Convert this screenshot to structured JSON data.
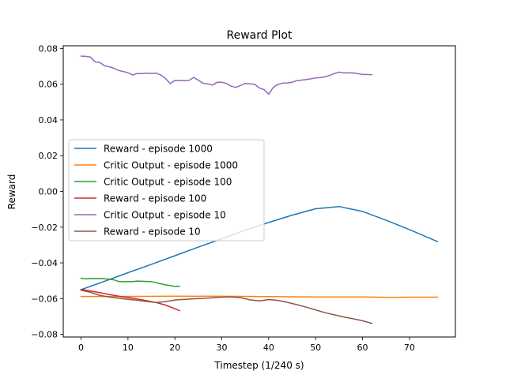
{
  "chart_data": {
    "type": "line",
    "title": "Reward Plot",
    "xlabel": "Timestep (1/240 s)",
    "ylabel": "Reward",
    "xlim": [
      -3.8,
      79.8
    ],
    "ylim": [
      -0.0815,
      0.0815
    ],
    "xticks": [
      0,
      10,
      20,
      30,
      40,
      50,
      60,
      70
    ],
    "xtick_labels": [
      "0",
      "10",
      "20",
      "30",
      "40",
      "50",
      "60",
      "70"
    ],
    "yticks": [
      -0.08,
      -0.06,
      -0.04,
      -0.02,
      0.0,
      0.02,
      0.04,
      0.06,
      0.08
    ],
    "ytick_labels": [
      "−0.08",
      "−0.06",
      "−0.04",
      "−0.02",
      "0.00",
      "0.02",
      "0.04",
      "0.06",
      "0.08"
    ],
    "grid": false,
    "legend_position": "center-left",
    "series": [
      {
        "name": "Reward - episode 1000",
        "color": "#1f77b4",
        "points": [
          [
            0,
            -0.055
          ],
          [
            5,
            -0.0503
          ],
          [
            10,
            -0.0455
          ],
          [
            15,
            -0.0408
          ],
          [
            20,
            -0.036
          ],
          [
            25,
            -0.0312
          ],
          [
            30,
            -0.0265
          ],
          [
            35,
            -0.0217
          ],
          [
            40,
            -0.0174
          ],
          [
            45,
            -0.0133
          ],
          [
            50,
            -0.0097
          ],
          [
            55,
            -0.0085
          ],
          [
            60,
            -0.0112
          ],
          [
            65,
            -0.0161
          ],
          [
            70,
            -0.0214
          ],
          [
            76,
            -0.0281
          ]
        ]
      },
      {
        "name": "Critic Output - episode 1000",
        "color": "#ff7f0e",
        "points": [
          [
            0,
            -0.0588
          ],
          [
            10,
            -0.0588
          ],
          [
            20,
            -0.0586
          ],
          [
            30,
            -0.0587
          ],
          [
            40,
            -0.0589
          ],
          [
            50,
            -0.0591
          ],
          [
            60,
            -0.0591
          ],
          [
            66,
            -0.0593
          ],
          [
            70,
            -0.0592
          ],
          [
            76,
            -0.0592
          ]
        ]
      },
      {
        "name": "Critic Output - episode 100",
        "color": "#2ca02c",
        "points": [
          [
            0,
            -0.0486
          ],
          [
            1,
            -0.0489
          ],
          [
            2,
            -0.0487
          ],
          [
            3,
            -0.0488
          ],
          [
            4,
            -0.0487
          ],
          [
            5,
            -0.0489
          ],
          [
            6,
            -0.0491
          ],
          [
            7,
            -0.0495
          ],
          [
            8,
            -0.0504
          ],
          [
            9,
            -0.0506
          ],
          [
            10,
            -0.0505
          ],
          [
            11,
            -0.0505
          ],
          [
            12,
            -0.0502
          ],
          [
            13,
            -0.0503
          ],
          [
            14,
            -0.0504
          ],
          [
            15,
            -0.0505
          ],
          [
            16,
            -0.0511
          ],
          [
            17,
            -0.0517
          ],
          [
            18,
            -0.0523
          ],
          [
            19,
            -0.0527
          ],
          [
            20,
            -0.0532
          ],
          [
            21,
            -0.0531
          ]
        ]
      },
      {
        "name": "Reward - episode 100",
        "color": "#d62728",
        "points": [
          [
            0,
            -0.0549
          ],
          [
            2,
            -0.0557
          ],
          [
            4,
            -0.0567
          ],
          [
            6,
            -0.0577
          ],
          [
            8,
            -0.0586
          ],
          [
            10,
            -0.0594
          ],
          [
            12,
            -0.0602
          ],
          [
            14,
            -0.0612
          ],
          [
            16,
            -0.0622
          ],
          [
            18,
            -0.0636
          ],
          [
            20,
            -0.0657
          ],
          [
            21,
            -0.0667
          ]
        ]
      },
      {
        "name": "Critic Output - episode 10",
        "color": "#9467bd",
        "points": [
          [
            0,
            0.0757
          ],
          [
            1,
            0.0756
          ],
          [
            2,
            0.0752
          ],
          [
            3,
            0.0725
          ],
          [
            4,
            0.0722
          ],
          [
            5,
            0.0703
          ],
          [
            6,
            0.0698
          ],
          [
            7,
            0.0689
          ],
          [
            8,
            0.0677
          ],
          [
            9,
            0.0671
          ],
          [
            10,
            0.0664
          ],
          [
            11,
            0.0652
          ],
          [
            12,
            0.066
          ],
          [
            13,
            0.0659
          ],
          [
            14,
            0.0662
          ],
          [
            15,
            0.066
          ],
          [
            16,
            0.0662
          ],
          [
            17,
            0.0651
          ],
          [
            18,
            0.0632
          ],
          [
            19,
            0.0603
          ],
          [
            20,
            0.0621
          ],
          [
            22,
            0.062
          ],
          [
            23,
            0.0621
          ],
          [
            24,
            0.0638
          ],
          [
            25,
            0.0622
          ],
          [
            26,
            0.0605
          ],
          [
            27,
            0.0602
          ],
          [
            28,
            0.0595
          ],
          [
            29,
            0.0611
          ],
          [
            30,
            0.0611
          ],
          [
            31,
            0.0604
          ],
          [
            32,
            0.0589
          ],
          [
            33,
            0.0582
          ],
          [
            34,
            0.0593
          ],
          [
            35,
            0.0604
          ],
          [
            36,
            0.0602
          ],
          [
            37,
            0.06
          ],
          [
            38,
            0.0579
          ],
          [
            39,
            0.057
          ],
          [
            40,
            0.0544
          ],
          [
            41,
            0.0583
          ],
          [
            42,
            0.0599
          ],
          [
            43,
            0.0606
          ],
          [
            44,
            0.0607
          ],
          [
            45,
            0.0611
          ],
          [
            46,
            0.062
          ],
          [
            47,
            0.0623
          ],
          [
            48,
            0.0626
          ],
          [
            49,
            0.063
          ],
          [
            50,
            0.0635
          ],
          [
            51,
            0.0637
          ],
          [
            52,
            0.0642
          ],
          [
            53,
            0.0649
          ],
          [
            54,
            0.066
          ],
          [
            55,
            0.0668
          ],
          [
            56,
            0.0663
          ],
          [
            57,
            0.0664
          ],
          [
            58,
            0.0663
          ],
          [
            59,
            0.0659
          ],
          [
            60,
            0.0654
          ],
          [
            61,
            0.0654
          ],
          [
            62,
            0.0653
          ]
        ]
      },
      {
        "name": "Reward - episode 10",
        "color": "#8c564b",
        "points": [
          [
            0,
            -0.0553
          ],
          [
            2,
            -0.0565
          ],
          [
            4,
            -0.0582
          ],
          [
            6,
            -0.0591
          ],
          [
            8,
            -0.0598
          ],
          [
            10,
            -0.0604
          ],
          [
            12,
            -0.0609
          ],
          [
            14,
            -0.0616
          ],
          [
            16,
            -0.0622
          ],
          [
            18,
            -0.0617
          ],
          [
            20,
            -0.0608
          ],
          [
            22,
            -0.0604
          ],
          [
            24,
            -0.0601
          ],
          [
            26,
            -0.0599
          ],
          [
            28,
            -0.0596
          ],
          [
            30,
            -0.0592
          ],
          [
            32,
            -0.0591
          ],
          [
            34,
            -0.0595
          ],
          [
            36,
            -0.0607
          ],
          [
            38,
            -0.0613
          ],
          [
            40,
            -0.0605
          ],
          [
            42,
            -0.061
          ],
          [
            44,
            -0.0621
          ],
          [
            46,
            -0.0634
          ],
          [
            48,
            -0.0648
          ],
          [
            50,
            -0.0663
          ],
          [
            52,
            -0.0679
          ],
          [
            54,
            -0.0691
          ],
          [
            56,
            -0.0703
          ],
          [
            58,
            -0.0713
          ],
          [
            60,
            -0.0724
          ],
          [
            62,
            -0.0739
          ]
        ]
      }
    ]
  }
}
